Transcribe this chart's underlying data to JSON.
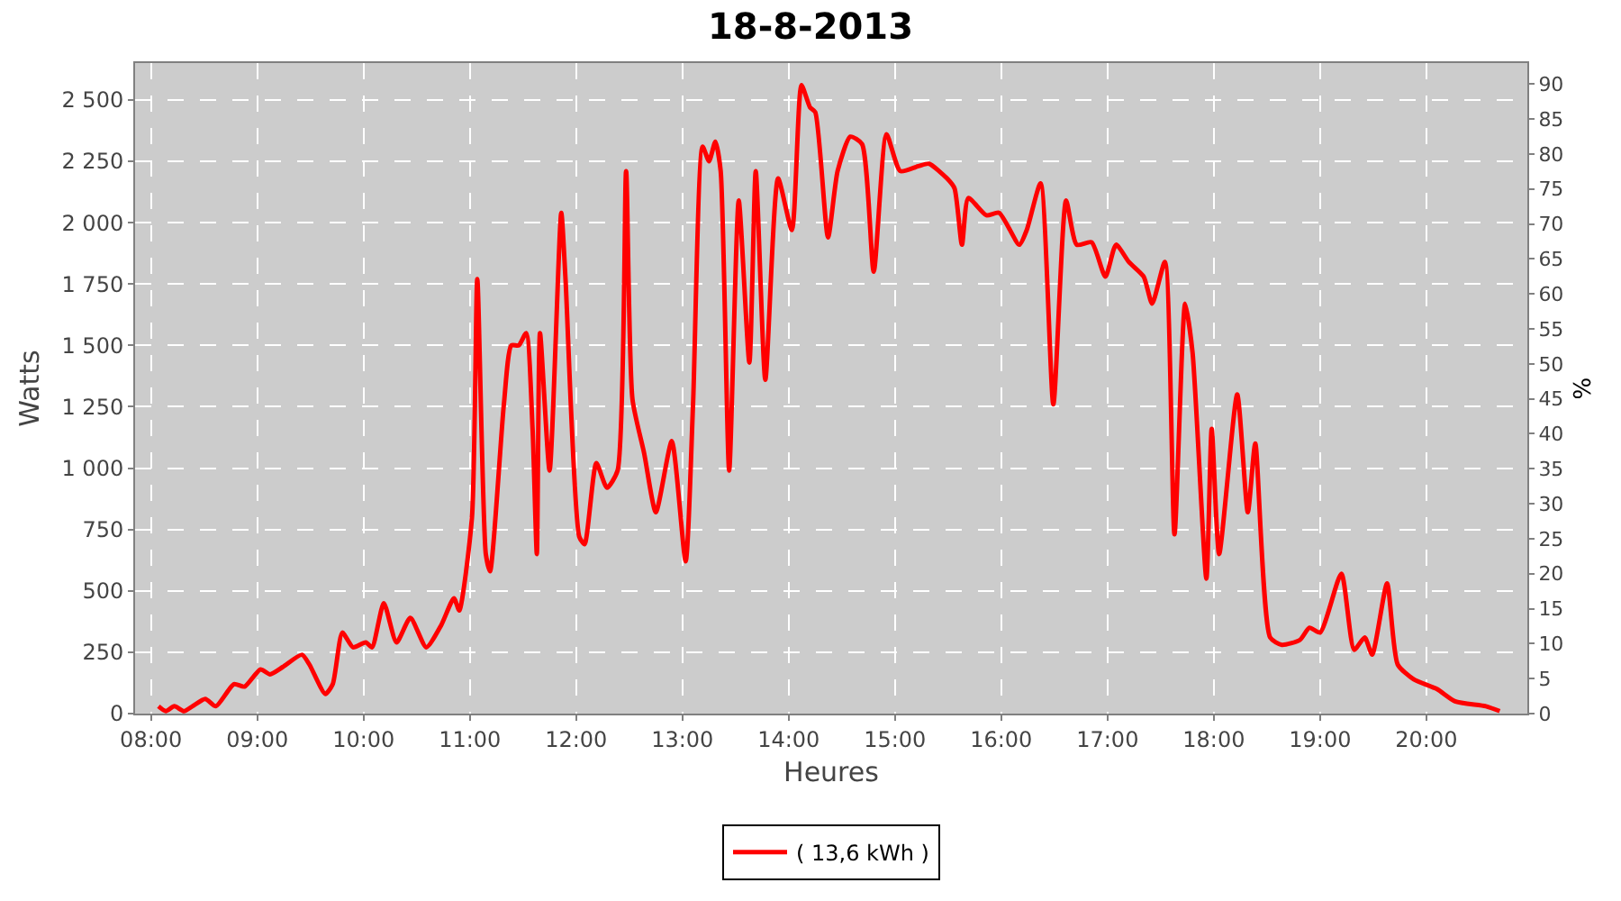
{
  "chart_data": {
    "type": "line",
    "title": "18-8-2013",
    "xlabel": "Heures",
    "ylabel": "Watts",
    "y2label": "%",
    "xlim": [
      7.85,
      20.95
    ],
    "xticks": [
      {
        "value": 8,
        "label": "08:00"
      },
      {
        "value": 9,
        "label": "09:00"
      },
      {
        "value": 10,
        "label": "10:00"
      },
      {
        "value": 11,
        "label": "11:00"
      },
      {
        "value": 12,
        "label": "12:00"
      },
      {
        "value": 13,
        "label": "13:00"
      },
      {
        "value": 14,
        "label": "14:00"
      },
      {
        "value": 15,
        "label": "15:00"
      },
      {
        "value": 16,
        "label": "16:00"
      },
      {
        "value": 17,
        "label": "17:00"
      },
      {
        "value": 18,
        "label": "18:00"
      },
      {
        "value": 19,
        "label": "19:00"
      },
      {
        "value": 20,
        "label": "20:00"
      }
    ],
    "ylim": [
      0,
      2650
    ],
    "yticks": [
      0,
      250,
      500,
      750,
      {
        "value": 1000,
        "label": "1 000"
      },
      {
        "value": 1250,
        "label": "1 250"
      },
      {
        "value": 1500,
        "label": "1 500"
      },
      {
        "value": 1750,
        "label": "1 750"
      },
      {
        "value": 2000,
        "label": "2 000"
      },
      {
        "value": 2250,
        "label": "2 250"
      },
      {
        "value": 2500,
        "label": "2 500"
      }
    ],
    "y2lim": [
      0,
      93
    ],
    "y2ticks": [
      0,
      5,
      10,
      15,
      20,
      25,
      30,
      35,
      40,
      45,
      50,
      55,
      60,
      65,
      70,
      75,
      80,
      85,
      90
    ],
    "grid": true,
    "legend": "bottom",
    "marker": "none",
    "line_style": "solid",
    "series": [
      {
        "name": "( 13,6 kWh )",
        "color": "#ff0000",
        "x": [
          8.07,
          8.14,
          8.22,
          8.31,
          8.39,
          8.51,
          8.61,
          8.78,
          8.88,
          9.03,
          9.12,
          9.24,
          9.42,
          9.49,
          9.64,
          9.71,
          9.8,
          9.9,
          10.02,
          10.08,
          10.19,
          10.31,
          10.44,
          10.59,
          10.73,
          10.85,
          10.9,
          11.02,
          11.07,
          11.15,
          11.19,
          11.32,
          11.39,
          11.46,
          11.53,
          11.59,
          11.63,
          11.66,
          11.75,
          11.86,
          11.9,
          12.03,
          12.08,
          12.19,
          12.29,
          12.39,
          12.47,
          12.53,
          12.64,
          12.75,
          12.9,
          13.03,
          13.1,
          13.19,
          13.25,
          13.31,
          13.36,
          13.44,
          13.53,
          13.63,
          13.69,
          13.78,
          13.9,
          14.03,
          14.12,
          14.2,
          14.25,
          14.37,
          14.46,
          14.58,
          14.69,
          14.8,
          14.92,
          15.05,
          15.22,
          15.32,
          15.49,
          15.56,
          15.63,
          15.69,
          15.86,
          15.98,
          16.17,
          16.24,
          16.37,
          16.49,
          16.61,
          16.71,
          16.85,
          16.98,
          17.08,
          17.2,
          17.34,
          17.42,
          17.54,
          17.63,
          17.73,
          17.8,
          17.93,
          17.98,
          18.05,
          18.22,
          18.32,
          18.39,
          18.53,
          18.64,
          18.81,
          18.9,
          19.0,
          19.2,
          19.32,
          19.42,
          19.49,
          19.63,
          19.73,
          19.88,
          20.1,
          20.27,
          20.56,
          20.69
        ],
        "values": [
          30,
          10,
          30,
          10,
          30,
          60,
          30,
          120,
          110,
          180,
          160,
          190,
          240,
          200,
          80,
          120,
          330,
          270,
          290,
          270,
          450,
          290,
          390,
          270,
          360,
          470,
          420,
          800,
          1770,
          650,
          580,
          1260,
          1500,
          1500,
          1550,
          1160,
          650,
          1550,
          990,
          2040,
          1770,
          720,
          690,
          1020,
          920,
          990,
          2210,
          1280,
          1060,
          820,
          1110,
          620,
          1260,
          2310,
          2250,
          2330,
          2210,
          990,
          2090,
          1430,
          2210,
          1360,
          2180,
          1970,
          2560,
          2470,
          2450,
          1940,
          2210,
          2350,
          2320,
          1800,
          2360,
          2210,
          2230,
          2240,
          2180,
          2140,
          1910,
          2100,
          2030,
          2040,
          1910,
          1970,
          2160,
          1260,
          2090,
          1910,
          1920,
          1780,
          1910,
          1840,
          1780,
          1670,
          1840,
          730,
          1670,
          1470,
          550,
          1160,
          650,
          1300,
          820,
          1100,
          310,
          280,
          300,
          350,
          330,
          570,
          260,
          310,
          240,
          530,
          200,
          140,
          100,
          50,
          30,
          10
        ]
      }
    ]
  }
}
